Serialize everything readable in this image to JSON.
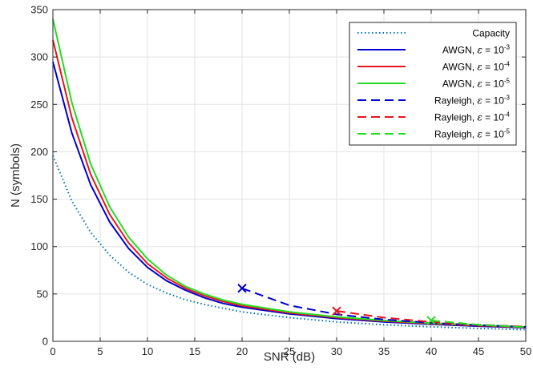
{
  "chart_data": {
    "type": "line",
    "xlabel": "SNR (dB)",
    "ylabel": "N (symbols)",
    "xlim": [
      0,
      50
    ],
    "ylim": [
      0,
      350
    ],
    "xticks": [
      0,
      5,
      10,
      15,
      20,
      25,
      30,
      35,
      40,
      45,
      50
    ],
    "yticks": [
      0,
      50,
      100,
      150,
      200,
      250,
      300,
      350
    ],
    "grid": true,
    "legend_position": "top-right",
    "series": [
      {
        "name": "Capacity",
        "legend_prefix": "Capacity",
        "legend_eps": "",
        "legend_base": "",
        "legend_exp": "",
        "color": "#0072BD",
        "style": "dotted",
        "marker": "",
        "x": [
          0,
          2,
          4,
          6,
          8,
          10,
          12,
          14,
          16,
          18,
          20,
          25,
          30,
          35,
          40,
          45,
          50
        ],
        "y": [
          196,
          148,
          115,
          91,
          73,
          60,
          51,
          44,
          39,
          35,
          31,
          25,
          20.5,
          17.5,
          15.3,
          13.6,
          12.3
        ]
      },
      {
        "name": "AWGN, ε = 10-3",
        "legend_prefix": "AWGN, ",
        "legend_eps": "ε",
        "legend_base": " = 10",
        "legend_exp": "-3",
        "color": "#0000CC",
        "style": "solid",
        "marker": "",
        "x": [
          0,
          2,
          4,
          6,
          8,
          10,
          12,
          14,
          16,
          18,
          20,
          25,
          30,
          35,
          40,
          45,
          50
        ],
        "y": [
          295,
          220,
          165,
          126,
          98,
          78,
          64,
          54,
          46,
          40,
          36,
          29,
          24,
          20.5,
          18,
          16,
          14.4
        ]
      },
      {
        "name": "AWGN, ε = 10-4",
        "legend_prefix": "AWGN, ",
        "legend_eps": "ε",
        "legend_base": " = 10",
        "legend_exp": "-4",
        "color": "#E8141B",
        "style": "solid",
        "marker": "",
        "x": [
          0,
          2,
          4,
          6,
          8,
          10,
          12,
          14,
          16,
          18,
          20,
          25,
          30,
          35,
          40,
          45,
          50
        ],
        "y": [
          318,
          236,
          176,
          134,
          104,
          82,
          67,
          56,
          48,
          42,
          37.5,
          30,
          25,
          21.3,
          18.6,
          16.5,
          14.8
        ]
      },
      {
        "name": "AWGN, ε = 10-5",
        "legend_prefix": "AWGN, ",
        "legend_eps": "ε",
        "legend_base": " = 10",
        "legend_exp": "-5",
        "color": "#22DD22",
        "style": "solid",
        "marker": "",
        "x": [
          0,
          2,
          4,
          6,
          8,
          10,
          12,
          14,
          16,
          18,
          20,
          25,
          30,
          35,
          40,
          45,
          50
        ],
        "y": [
          340,
          252,
          187,
          142,
          110,
          87,
          70,
          58,
          50,
          43.5,
          39,
          31,
          25.8,
          22,
          19.2,
          17,
          15.2
        ]
      },
      {
        "name": "Rayleigh, ε = 10-3",
        "legend_prefix": "Rayleigh, ",
        "legend_eps": "ε",
        "legend_base": " = 10",
        "legend_exp": "-3",
        "color": "#0000CC",
        "style": "dashed",
        "marker": "x",
        "x": [
          20,
          25,
          30,
          35,
          40,
          45,
          50
        ],
        "y": [
          56,
          38,
          28.5,
          23,
          19.5,
          17,
          15.2
        ]
      },
      {
        "name": "Rayleigh, ε = 10-4",
        "legend_prefix": "Rayleigh, ",
        "legend_eps": "ε",
        "legend_base": " = 10",
        "legend_exp": "-4",
        "color": "#E8141B",
        "style": "dashed",
        "marker": "x",
        "x": [
          30,
          35,
          40,
          45,
          50
        ],
        "y": [
          32,
          25,
          20.5,
          17.5,
          15.5
        ]
      },
      {
        "name": "Rayleigh, ε = 10-5",
        "legend_prefix": "Rayleigh, ",
        "legend_eps": "ε",
        "legend_base": " = 10",
        "legend_exp": "-5",
        "color": "#22DD22",
        "style": "dashed",
        "marker": "x",
        "x": [
          40,
          45,
          50
        ],
        "y": [
          22,
          17.5,
          15
        ]
      }
    ]
  }
}
